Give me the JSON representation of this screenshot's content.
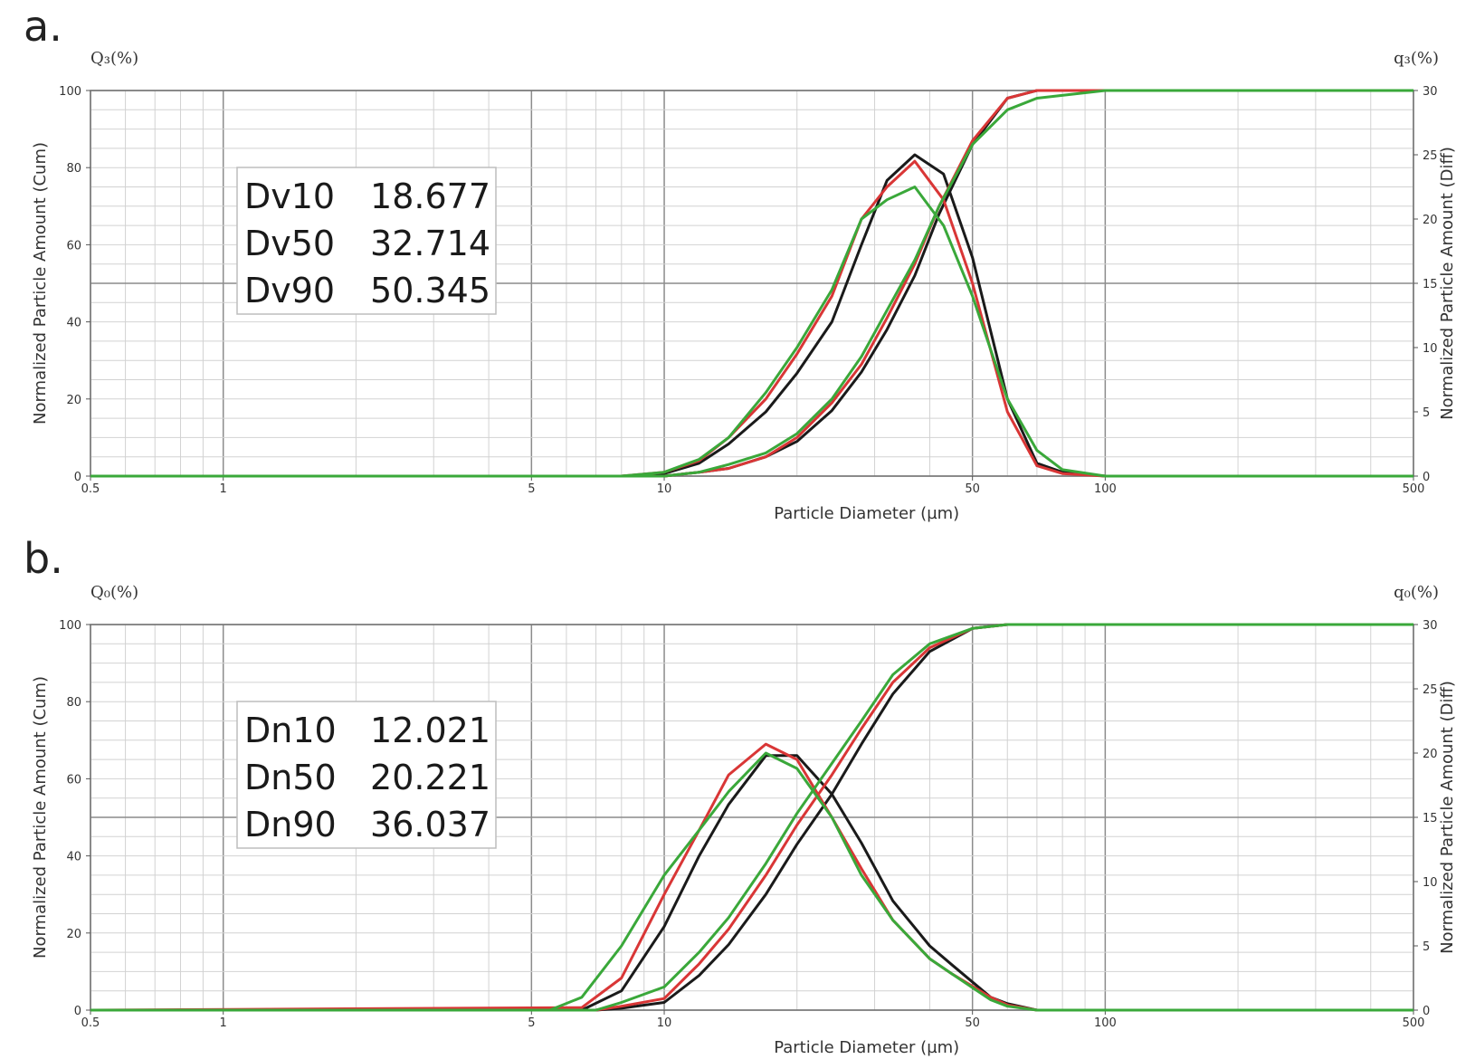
{
  "chart_data": [
    {
      "type": "line",
      "panel_label": "a.",
      "xlabel": "Particle Diameter (µm)",
      "ylabel_left": "Normalized Particle Amount (Cum)",
      "ylabel_right": "Normalized Particle Amount (Diff)",
      "corner_left": "Q₃(%)",
      "corner_right": "q₃(%)",
      "x_scale": "log",
      "xlim": [
        0.5,
        500
      ],
      "ylim_left": [
        0,
        100
      ],
      "ylim_right": [
        0,
        30
      ],
      "x_ticks": [
        0.5,
        1,
        5,
        10,
        50,
        100,
        500
      ],
      "y_ticks_left": [
        0,
        20,
        40,
        60,
        80,
        100
      ],
      "y_ticks_right": [
        0,
        5,
        10,
        15,
        20,
        25,
        30
      ],
      "grid": true,
      "colors": {
        "black": "#1a1a1a",
        "red": "#d93636",
        "green": "#3aa83a"
      },
      "stats": [
        {
          "label": "Dv10",
          "value": "18.677"
        },
        {
          "label": "Dv50",
          "value": "32.714"
        },
        {
          "label": "Dv90",
          "value": "50.345"
        }
      ],
      "series": [
        {
          "color": "black",
          "kind": "cumulative",
          "x": [
            0.5,
            8,
            10,
            12,
            14,
            17,
            20,
            24,
            28,
            32,
            37,
            42,
            50,
            60,
            70,
            100,
            500
          ],
          "y": [
            0,
            0,
            0,
            1,
            2,
            5,
            9,
            17,
            27,
            38,
            52,
            68,
            86,
            98,
            100,
            100,
            100
          ]
        },
        {
          "color": "red",
          "kind": "cumulative",
          "x": [
            0.5,
            8,
            10,
            12,
            14,
            17,
            20,
            24,
            28,
            32,
            37,
            42,
            50,
            60,
            70,
            100,
            500
          ],
          "y": [
            0,
            0,
            0,
            1,
            2,
            5,
            10,
            19,
            29,
            41,
            55,
            70,
            87,
            98,
            100,
            100,
            100
          ]
        },
        {
          "color": "green",
          "kind": "cumulative",
          "x": [
            0.5,
            8,
            10,
            12,
            14,
            17,
            20,
            24,
            28,
            32,
            37,
            42,
            50,
            60,
            70,
            100,
            500
          ],
          "y": [
            0,
            0,
            0,
            1,
            3,
            6,
            11,
            20,
            31,
            43,
            56,
            70,
            86,
            95,
            98,
            100,
            100
          ]
        },
        {
          "color": "black",
          "kind": "differential",
          "x": [
            0.5,
            8,
            10,
            12,
            14,
            17,
            20,
            24,
            28,
            32,
            37,
            43,
            50,
            60,
            70,
            80,
            100,
            500
          ],
          "y": [
            0,
            0,
            0.2,
            1,
            2.5,
            5,
            8,
            12,
            18,
            23,
            25,
            23.5,
            17,
            6,
            1,
            0.3,
            0,
            0
          ]
        },
        {
          "color": "red",
          "kind": "differential",
          "x": [
            0.5,
            8,
            10,
            12,
            14,
            17,
            20,
            24,
            28,
            32,
            37,
            43,
            50,
            60,
            70,
            80,
            100,
            500
          ],
          "y": [
            0,
            0,
            0.3,
            1.2,
            3,
            6,
            9.5,
            14,
            20,
            22.5,
            24.5,
            21.5,
            15,
            5,
            0.8,
            0.2,
            0,
            0
          ]
        },
        {
          "color": "green",
          "kind": "differential",
          "x": [
            0.5,
            8,
            10,
            12,
            14,
            17,
            20,
            24,
            28,
            32,
            37,
            43,
            50,
            60,
            70,
            80,
            100,
            500
          ],
          "y": [
            0,
            0,
            0.3,
            1.3,
            3,
            6.5,
            10,
            14.5,
            20,
            21.5,
            22.5,
            19.5,
            14,
            6,
            2,
            0.5,
            0,
            0
          ]
        }
      ]
    },
    {
      "type": "line",
      "panel_label": "b.",
      "xlabel": "Particle Diameter (µm)",
      "ylabel_left": "Normalized Particle Amount (Cum)",
      "ylabel_right": "Normalized Particle Amount (Diff)",
      "corner_left": "Q₀(%)",
      "corner_right": "q₀(%)",
      "x_scale": "log",
      "xlim": [
        0.5,
        500
      ],
      "ylim_left": [
        0,
        100
      ],
      "ylim_right": [
        0,
        30
      ],
      "x_ticks": [
        0.5,
        1,
        5,
        10,
        50,
        100,
        500
      ],
      "y_ticks_left": [
        0,
        20,
        40,
        60,
        80,
        100
      ],
      "y_ticks_right": [
        0,
        5,
        10,
        15,
        20,
        25,
        30
      ],
      "grid": true,
      "colors": {
        "black": "#1a1a1a",
        "red": "#d93636",
        "green": "#3aa83a"
      },
      "stats": [
        {
          "label": "Dn10",
          "value": "12.021"
        },
        {
          "label": "Dn50",
          "value": "20.221"
        },
        {
          "label": "Dn90",
          "value": "36.037"
        }
      ],
      "series": [
        {
          "color": "black",
          "kind": "cumulative",
          "x": [
            0.5,
            7,
            8,
            10,
            12,
            14,
            17,
            20,
            24,
            28,
            33,
            40,
            50,
            60,
            500
          ],
          "y": [
            0,
            0,
            0.5,
            2,
            9,
            17,
            30,
            43,
            56,
            69,
            82,
            93,
            99,
            100,
            100
          ]
        },
        {
          "color": "red",
          "kind": "cumulative",
          "x": [
            0.5,
            7,
            8,
            10,
            12,
            14,
            17,
            20,
            24,
            28,
            33,
            40,
            50,
            60,
            500
          ],
          "y": [
            0,
            0,
            1,
            3,
            12,
            21,
            35,
            48,
            61,
            73,
            85,
            94,
            99,
            100,
            100
          ]
        },
        {
          "color": "green",
          "kind": "cumulative",
          "x": [
            0.5,
            7,
            8,
            10,
            12,
            14,
            17,
            20,
            24,
            28,
            33,
            40,
            50,
            60,
            500
          ],
          "y": [
            0,
            0,
            2,
            6,
            15,
            24,
            38,
            51,
            64,
            75,
            87,
            95,
            99,
            100,
            100
          ]
        },
        {
          "color": "black",
          "kind": "differential",
          "x": [
            0.5,
            6.5,
            8,
            10,
            12,
            14,
            17,
            20,
            24,
            28,
            33,
            40,
            45,
            55,
            60,
            70,
            500
          ],
          "y": [
            0,
            0,
            1.5,
            6.5,
            12,
            16,
            19.8,
            19.8,
            16.8,
            13,
            8.5,
            5,
            3.5,
            1,
            0.5,
            0,
            0
          ]
        },
        {
          "color": "red",
          "kind": "differential",
          "x": [
            0.5,
            6.5,
            8,
            10,
            12,
            14,
            17,
            20,
            24,
            28,
            33,
            40,
            45,
            55,
            60,
            70,
            500
          ],
          "y": [
            0,
            0.2,
            2.5,
            9,
            14,
            18.3,
            20.7,
            19.5,
            15,
            11,
            7,
            4,
            2.8,
            1,
            0.4,
            0,
            0
          ]
        },
        {
          "color": "green",
          "kind": "differential",
          "x": [
            0.5,
            5.5,
            6.5,
            8,
            10,
            12,
            14,
            17,
            20,
            24,
            28,
            33,
            40,
            45,
            55,
            60,
            70,
            500
          ],
          "y": [
            0,
            0,
            1,
            5,
            10.5,
            14,
            17,
            20,
            18.8,
            15,
            10.5,
            7,
            4,
            2.8,
            0.8,
            0.3,
            0,
            0
          ]
        }
      ]
    }
  ]
}
